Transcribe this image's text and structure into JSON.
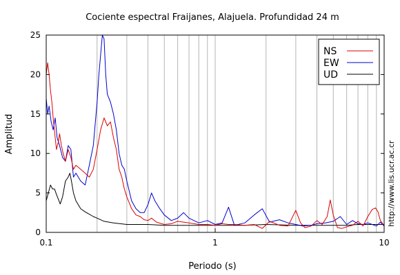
{
  "chart_data": {
    "type": "line",
    "title": "Cociente espectral Fraijanes, Alajuela. Profundidad 24 m",
    "xlabel": "Periodo (s)",
    "ylabel": "Amplitud",
    "xscale": "log",
    "xlim": [
      0.1,
      10
    ],
    "ylim": [
      0,
      25
    ],
    "xticks": [
      0.1,
      1,
      10
    ],
    "xtick_labels": [
      "0.1",
      "1",
      "10"
    ],
    "yticks": [
      0,
      5,
      10,
      15,
      20,
      25
    ],
    "ytick_labels": [
      "0",
      "5",
      "10",
      "15",
      "20",
      "25"
    ],
    "grid": "vertical minor lines at 1-9 per decade",
    "legend_position": "top-right",
    "watermark": "http://www.lis.ucr.ac.cr",
    "series": [
      {
        "name": "NS",
        "color": "#dd0000",
        "x": [
          0.1,
          0.102,
          0.104,
          0.106,
          0.108,
          0.11,
          0.113,
          0.115,
          0.118,
          0.12,
          0.123,
          0.126,
          0.13,
          0.135,
          0.14,
          0.145,
          0.15,
          0.16,
          0.17,
          0.18,
          0.19,
          0.2,
          0.21,
          0.22,
          0.23,
          0.24,
          0.25,
          0.26,
          0.27,
          0.28,
          0.29,
          0.3,
          0.32,
          0.34,
          0.36,
          0.38,
          0.4,
          0.42,
          0.45,
          0.5,
          0.55,
          0.6,
          0.7,
          0.8,
          0.9,
          1.0,
          1.1,
          1.2,
          1.3,
          1.5,
          1.7,
          1.9,
          2.1,
          2.4,
          2.7,
          3.0,
          3.2,
          3.4,
          3.7,
          4.0,
          4.3,
          4.6,
          4.8,
          5.0,
          5.3,
          5.6,
          6.0,
          6.5,
          7.0,
          7.5,
          8.0,
          8.5,
          8.9,
          9.2,
          9.5,
          9.8,
          10.0
        ],
        "y": [
          20.0,
          21.5,
          20.0,
          18.0,
          16.5,
          14.5,
          12.0,
          10.5,
          11.5,
          12.5,
          11.0,
          10.0,
          9.0,
          10.5,
          9.5,
          8.0,
          8.5,
          8.0,
          7.5,
          7.0,
          8.0,
          10.5,
          13.0,
          14.5,
          13.5,
          14.0,
          12.0,
          10.5,
          8.0,
          7.0,
          5.5,
          4.5,
          3.0,
          2.2,
          2.0,
          1.6,
          1.5,
          1.8,
          1.3,
          1.0,
          1.1,
          1.4,
          1.2,
          1.0,
          1.0,
          0.9,
          1.1,
          1.0,
          1.0,
          0.9,
          1.0,
          0.5,
          1.4,
          0.9,
          0.8,
          2.8,
          1.2,
          0.6,
          0.8,
          1.5,
          1.0,
          2.0,
          4.1,
          2.2,
          0.6,
          0.5,
          0.7,
          0.9,
          1.4,
          0.8,
          2.0,
          2.9,
          3.1,
          2.6,
          1.5,
          1.1,
          0.9
        ]
      },
      {
        "name": "EW",
        "color": "#0000cc",
        "x": [
          0.1,
          0.102,
          0.104,
          0.107,
          0.11,
          0.113,
          0.116,
          0.12,
          0.125,
          0.13,
          0.135,
          0.14,
          0.145,
          0.15,
          0.16,
          0.17,
          0.18,
          0.19,
          0.2,
          0.205,
          0.21,
          0.215,
          0.22,
          0.225,
          0.23,
          0.24,
          0.25,
          0.26,
          0.27,
          0.28,
          0.29,
          0.3,
          0.32,
          0.34,
          0.36,
          0.38,
          0.4,
          0.42,
          0.44,
          0.47,
          0.5,
          0.55,
          0.6,
          0.65,
          0.7,
          0.8,
          0.9,
          1.0,
          1.1,
          1.2,
          1.3,
          1.5,
          1.7,
          1.9,
          2.1,
          2.4,
          2.7,
          3.0,
          3.3,
          3.7,
          4.0,
          4.5,
          5.0,
          5.5,
          6.0,
          6.5,
          7.0,
          7.5,
          8.0,
          8.5,
          9.0,
          9.5,
          10.0
        ],
        "y": [
          17.0,
          15.0,
          16.0,
          14.0,
          13.0,
          14.5,
          12.0,
          11.0,
          9.5,
          9.0,
          11.0,
          10.5,
          7.0,
          7.5,
          6.5,
          6.0,
          8.5,
          11.0,
          16.5,
          20.0,
          22.5,
          25.0,
          24.5,
          20.0,
          17.5,
          16.5,
          15.0,
          13.0,
          10.0,
          8.5,
          8.0,
          6.5,
          4.0,
          3.0,
          2.5,
          2.5,
          3.5,
          5.0,
          4.0,
          3.0,
          2.2,
          1.5,
          1.8,
          2.5,
          1.8,
          1.2,
          1.5,
          1.0,
          1.2,
          3.2,
          0.9,
          1.2,
          2.2,
          3.0,
          1.3,
          1.6,
          1.2,
          1.0,
          0.8,
          0.9,
          1.1,
          1.2,
          1.4,
          2.0,
          1.0,
          1.5,
          1.1,
          1.0,
          1.2,
          1.0,
          0.8,
          1.3,
          0.8
        ]
      },
      {
        "name": "UD",
        "color": "#000000",
        "x": [
          0.1,
          0.103,
          0.106,
          0.109,
          0.112,
          0.115,
          0.118,
          0.121,
          0.125,
          0.13,
          0.135,
          0.138,
          0.141,
          0.145,
          0.15,
          0.16,
          0.17,
          0.18,
          0.19,
          0.2,
          0.22,
          0.25,
          0.3,
          0.35,
          0.4,
          0.5,
          0.6,
          0.8,
          1.0,
          1.5,
          2.0,
          3.0,
          4.0,
          5.0,
          6.0,
          7.0,
          8.0,
          9.0,
          10.0
        ],
        "y": [
          4.0,
          5.0,
          6.0,
          5.5,
          5.5,
          4.8,
          4.2,
          3.6,
          4.5,
          6.5,
          7.0,
          7.5,
          6.5,
          5.0,
          4.0,
          3.0,
          2.6,
          2.3,
          2.0,
          1.8,
          1.4,
          1.2,
          1.0,
          1.0,
          1.0,
          0.9,
          0.9,
          0.9,
          0.9,
          0.9,
          1.0,
          0.9,
          0.9,
          0.9,
          0.9,
          1.0,
          1.0,
          1.0,
          1.0
        ]
      }
    ]
  }
}
